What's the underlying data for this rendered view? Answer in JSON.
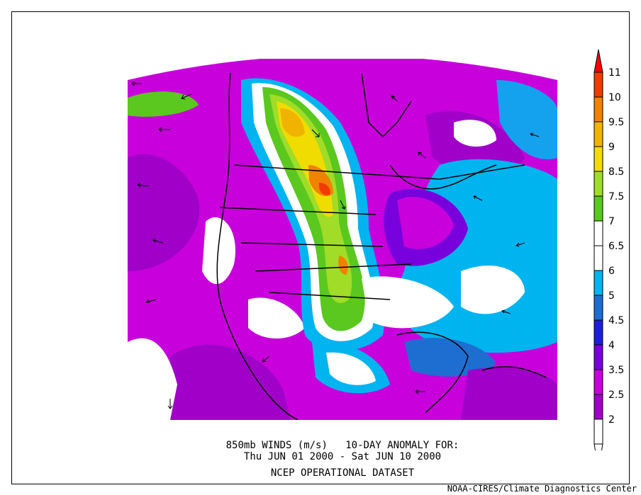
{
  "caption": {
    "line1": "850mb WINDS (m/s)   10-DAY ANOMALY FOR:",
    "line2": "Thu JUN 01 2000 - Sat JUN 10 2000",
    "line3": "NCEP OPERATIONAL DATASET"
  },
  "credit": "NOAA-CIRES/Climate Diagnostics Center",
  "legend": {
    "levels": [
      {
        "label": "2",
        "color": "#ffffff"
      },
      {
        "label": "2.5",
        "color": "#a000c8"
      },
      {
        "label": "3.5",
        "color": "#c800dc"
      },
      {
        "label": "4",
        "color": "#7800dc"
      },
      {
        "label": "4.5",
        "color": "#1e1edc"
      },
      {
        "label": "5",
        "color": "#1e6ed2"
      },
      {
        "label": "6",
        "color": "#00b4f0"
      },
      {
        "label": "6.5",
        "color": "#ffffff"
      },
      {
        "label": "7",
        "color": "#ffffff"
      },
      {
        "label": "7.5",
        "color": "#5ac81e"
      },
      {
        "label": "8.5",
        "color": "#a0dc28"
      },
      {
        "label": "9",
        "color": "#f0dc00"
      },
      {
        "label": "9.5",
        "color": "#f0b400"
      },
      {
        "label": "10",
        "color": "#f08200"
      },
      {
        "label": "11",
        "color": "#f03c00"
      }
    ],
    "top_color": "#ff0000",
    "bottom_color": "#ffffff"
  }
}
